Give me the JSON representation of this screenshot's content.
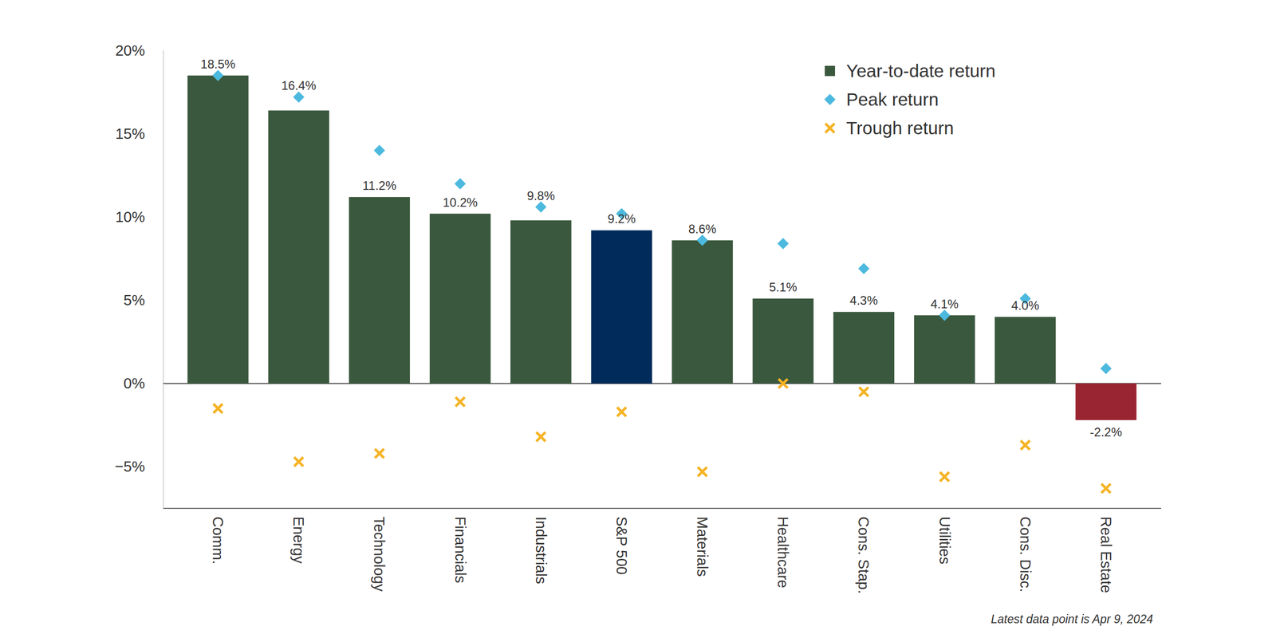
{
  "chart_data": {
    "type": "bar",
    "categories": [
      "Comm.",
      "Energy",
      "Technology",
      "Financials",
      "Industrials",
      "S&P 500",
      "Materials",
      "Healthcare",
      "Cons. Stap.",
      "Utilities",
      "Cons. Disc.",
      "Real Estate"
    ],
    "series": [
      {
        "name": "Year-to-date return",
        "type": "bar",
        "colors": [
          "#3a583d",
          "#3a583d",
          "#3a583d",
          "#3a583d",
          "#3a583d",
          "#002b5a",
          "#3a583d",
          "#3a583d",
          "#3a583d",
          "#3a583d",
          "#3a583d",
          "#9a2532"
        ],
        "values": [
          18.5,
          16.4,
          11.2,
          10.2,
          9.8,
          9.2,
          8.6,
          5.1,
          4.3,
          4.1,
          4.0,
          -2.2
        ],
        "value_labels": [
          "18.5%",
          "16.4%",
          "11.2%",
          "10.2%",
          "9.8%",
          "9.2%",
          "8.6%",
          "5.1%",
          "4.3%",
          "4.1%",
          "4.0%",
          "-2.2%"
        ]
      },
      {
        "name": "Peak return",
        "type": "scatter",
        "marker": "diamond",
        "color": "#4cb9de",
        "values": [
          18.5,
          17.2,
          14.0,
          12.0,
          10.6,
          10.2,
          8.6,
          8.4,
          6.9,
          4.1,
          5.1,
          0.9
        ]
      },
      {
        "name": "Trough return",
        "type": "scatter",
        "marker": "x",
        "color": "#f5b324",
        "values": [
          -1.5,
          -4.7,
          -4.2,
          -1.1,
          -3.2,
          -1.7,
          -5.3,
          0.0,
          -0.5,
          -5.6,
          -3.7,
          -6.3
        ]
      }
    ],
    "ylim": [
      -7.5,
      20
    ],
    "yticks": [
      {
        "value": -5,
        "label": "−5%"
      },
      {
        "value": 0,
        "label": "0%"
      },
      {
        "value": 5,
        "label": "5%"
      },
      {
        "value": 10,
        "label": "10%"
      },
      {
        "value": 15,
        "label": "15%"
      },
      {
        "value": 20,
        "label": "20%"
      }
    ],
    "grid": false,
    "legend": "upper right",
    "data_labels": true,
    "annotations": [
      "Latest data point is Apr 9, 2024"
    ]
  }
}
